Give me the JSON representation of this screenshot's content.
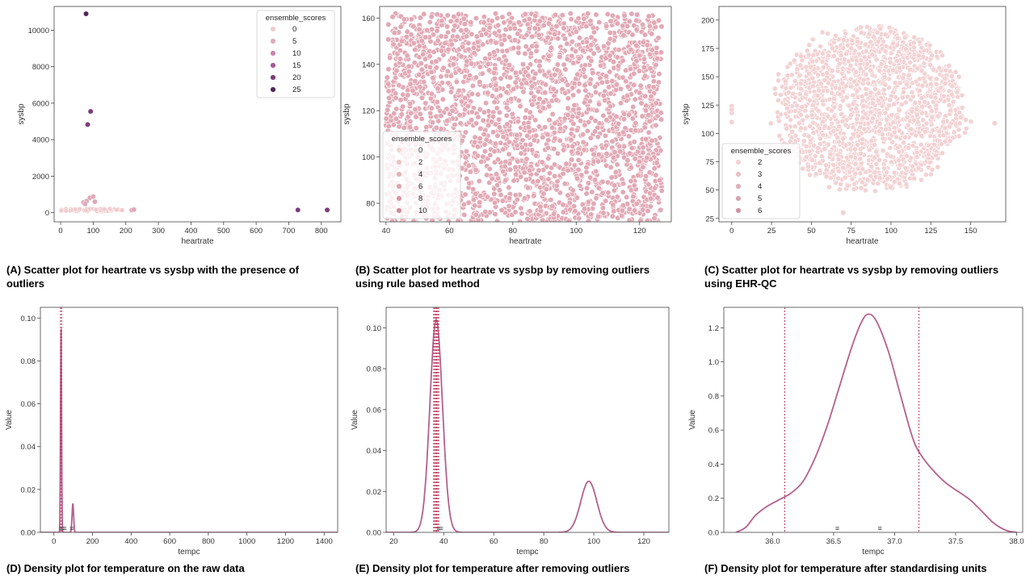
{
  "chart_data": [
    {
      "id": "A",
      "type": "scatter",
      "caption": "(A) Scatter plot for heartrate vs sysbp with the presence of outliers",
      "xlabel": "heartrate",
      "ylabel": "sysbp",
      "xlim": [
        -20,
        860
      ],
      "ylim": [
        -500,
        11300
      ],
      "xticks": [
        0,
        100,
        200,
        300,
        400,
        500,
        600,
        700,
        800
      ],
      "yticks": [
        0,
        2000,
        4000,
        6000,
        8000,
        10000
      ],
      "legend": {
        "title": "ensemble_scores",
        "location": "top-right",
        "labels": [
          "0",
          "5",
          "10",
          "15",
          "20",
          "25"
        ],
        "colors": [
          "#f0cbcd",
          "#deaab9",
          "#c983a9",
          "#a45a93",
          "#7d3b7b",
          "#532759"
        ]
      },
      "points": [
        {
          "x": 78,
          "y": 10900,
          "score": 25
        },
        {
          "x": 92,
          "y": 5550,
          "score": 20
        },
        {
          "x": 83,
          "y": 4830,
          "score": 20
        },
        {
          "x": 728,
          "y": 150,
          "score": 20
        },
        {
          "x": 818,
          "y": 150,
          "score": 20
        },
        {
          "x": 70,
          "y": 560,
          "score": 5
        },
        {
          "x": 80,
          "y": 640,
          "score": 5
        },
        {
          "x": 90,
          "y": 820,
          "score": 5
        },
        {
          "x": 100,
          "y": 880,
          "score": 5
        },
        {
          "x": 105,
          "y": 600,
          "score": 5
        },
        {
          "x": 75,
          "y": 480,
          "score": 5
        },
        {
          "x": 218,
          "y": 140,
          "score": 5
        },
        {
          "x": 225,
          "y": 170,
          "score": 5
        }
      ],
      "cluster": {
        "xmin": 0,
        "xmax": 190,
        "ymin": 60,
        "ymax": 220,
        "score": 0
      }
    },
    {
      "id": "B",
      "type": "scatter",
      "caption": "(B) Scatter plot for heartrate vs sysbp by removing outliers using rule based method",
      "xlabel": "heartrate",
      "ylabel": "sysbp",
      "xlim": [
        38,
        130
      ],
      "ylim": [
        72,
        165
      ],
      "xticks": [
        40,
        60,
        80,
        100,
        120
      ],
      "yticks": [
        80,
        100,
        120,
        140,
        160
      ],
      "legend": {
        "title": "ensemble_scores",
        "location": "lower-left",
        "labels": [
          "0",
          "2",
          "4",
          "6",
          "8",
          "10"
        ],
        "colors": [
          "#f2d6d6",
          "#eac3c6",
          "#e3b3b9",
          "#dca5ae",
          "#d697a4",
          "#cf8a9a"
        ]
      },
      "cluster": {
        "xmin": 40,
        "xmax": 127,
        "ymin": 72,
        "ymax": 162,
        "score": 0
      }
    },
    {
      "id": "C",
      "type": "scatter",
      "caption": "(C) Scatter plot for heartrate vs sysbp by removing outliers using EHR-QC",
      "xlabel": "heartrate",
      "ylabel": "sysbp",
      "xlim": [
        -8,
        172
      ],
      "ylim": [
        22,
        212
      ],
      "xticks": [
        0,
        25,
        50,
        75,
        100,
        125,
        150
      ],
      "yticks": [
        25,
        50,
        75,
        100,
        125,
        150,
        175,
        200
      ],
      "legend": {
        "title": "ensemble_scores",
        "location": "lower-left",
        "labels": [
          "2",
          "3",
          "4",
          "5",
          "6"
        ],
        "colors": [
          "#f2d2d4",
          "#e8bfc4",
          "#e0b0b8",
          "#d8a2ac",
          "#d095a2"
        ]
      },
      "points": [
        {
          "x": 0,
          "y": 124,
          "score": 2
        },
        {
          "x": 0,
          "y": 118,
          "score": 2
        },
        {
          "x": 0,
          "y": 110,
          "score": 2
        },
        {
          "x": 0,
          "y": 121,
          "score": 2
        },
        {
          "x": 165,
          "y": 109,
          "score": 2
        },
        {
          "x": 70,
          "y": 30,
          "score": 2
        }
      ],
      "cluster": {
        "center_x": 87,
        "center_y": 122,
        "rx": 58,
        "ry": 72,
        "score": 2
      }
    },
    {
      "id": "D",
      "type": "area",
      "caption": "(D) Density plot for temperature on the raw data",
      "xlabel": "tempc",
      "ylabel": "Value",
      "xlim": [
        -70,
        1470
      ],
      "ylim": [
        0,
        0.105
      ],
      "xticks": [
        0,
        200,
        400,
        600,
        800,
        1000,
        1200,
        1400
      ],
      "yticks": [
        0.0,
        0.02,
        0.04,
        0.06,
        0.08,
        0.1
      ],
      "ytick_labels": [
        "0.00",
        "0.02",
        "0.04",
        "0.06",
        "0.08",
        "0.10"
      ],
      "curve_components": [
        {
          "mean": 37,
          "sd": 2.5,
          "peak": 0.1
        },
        {
          "mean": 98,
          "sd": 4,
          "peak": 0.0135
        }
      ],
      "vlines": [
        34,
        40
      ],
      "rug_x": [
        37,
        45,
        55,
        92
      ]
    },
    {
      "id": "E",
      "type": "area",
      "caption": "(E) Density plot for temperature after removing outliers",
      "xlabel": "tempc",
      "ylabel": "Value",
      "xlim": [
        17,
        130
      ],
      "ylim": [
        0,
        0.11
      ],
      "xticks": [
        20,
        40,
        60,
        80,
        100,
        120
      ],
      "yticks": [
        0.0,
        0.02,
        0.04,
        0.06,
        0.08,
        0.1
      ],
      "ytick_labels": [
        "0.00",
        "0.02",
        "0.04",
        "0.06",
        "0.08",
        "0.10"
      ],
      "curve_components": [
        {
          "mean": 37,
          "sd": 2.5,
          "peak": 0.104
        },
        {
          "mean": 98,
          "sd": 3.2,
          "peak": 0.025
        }
      ],
      "vlines": [
        36.0,
        36.4,
        36.8,
        37.2,
        37.6,
        38.0
      ],
      "rug_x": [
        38,
        39
      ]
    },
    {
      "id": "F",
      "type": "area",
      "caption": "(F) Density plot for temperature after standardising units",
      "xlabel": "tempc",
      "ylabel": "Value",
      "xlim": [
        35.6,
        38.05
      ],
      "ylim": [
        0,
        1.32
      ],
      "xticks": [
        36.0,
        36.5,
        37.0,
        37.5,
        38.0
      ],
      "xtick_labels": [
        "36.0",
        "36.5",
        "37.0",
        "37.5",
        "38.0"
      ],
      "yticks": [
        0.0,
        0.2,
        0.4,
        0.6,
        0.8,
        1.0,
        1.2
      ],
      "ytick_labels": [
        "0.0",
        "0.2",
        "0.4",
        "0.6",
        "0.8",
        "1.0",
        "1.2"
      ],
      "curve": [
        [
          35.7,
          0.0
        ],
        [
          35.78,
          0.03
        ],
        [
          35.86,
          0.1
        ],
        [
          35.95,
          0.15
        ],
        [
          36.05,
          0.19
        ],
        [
          36.15,
          0.23
        ],
        [
          36.25,
          0.3
        ],
        [
          36.35,
          0.44
        ],
        [
          36.45,
          0.63
        ],
        [
          36.55,
          0.86
        ],
        [
          36.65,
          1.09
        ],
        [
          36.72,
          1.22
        ],
        [
          36.78,
          1.28
        ],
        [
          36.85,
          1.24
        ],
        [
          36.95,
          1.06
        ],
        [
          37.05,
          0.8
        ],
        [
          37.15,
          0.55
        ],
        [
          37.22,
          0.45
        ],
        [
          37.32,
          0.36
        ],
        [
          37.42,
          0.29
        ],
        [
          37.52,
          0.24
        ],
        [
          37.62,
          0.19
        ],
        [
          37.72,
          0.12
        ],
        [
          37.82,
          0.05
        ],
        [
          37.92,
          0.01
        ],
        [
          38.0,
          0.0
        ]
      ],
      "vlines": [
        36.1,
        37.2
      ],
      "rug_x": [
        36.53,
        36.88
      ]
    }
  ],
  "colors": {
    "curve": "#b5608f",
    "vline": "#c0395a",
    "scatter_face": "#e2a9b6",
    "axis": "#000000"
  }
}
